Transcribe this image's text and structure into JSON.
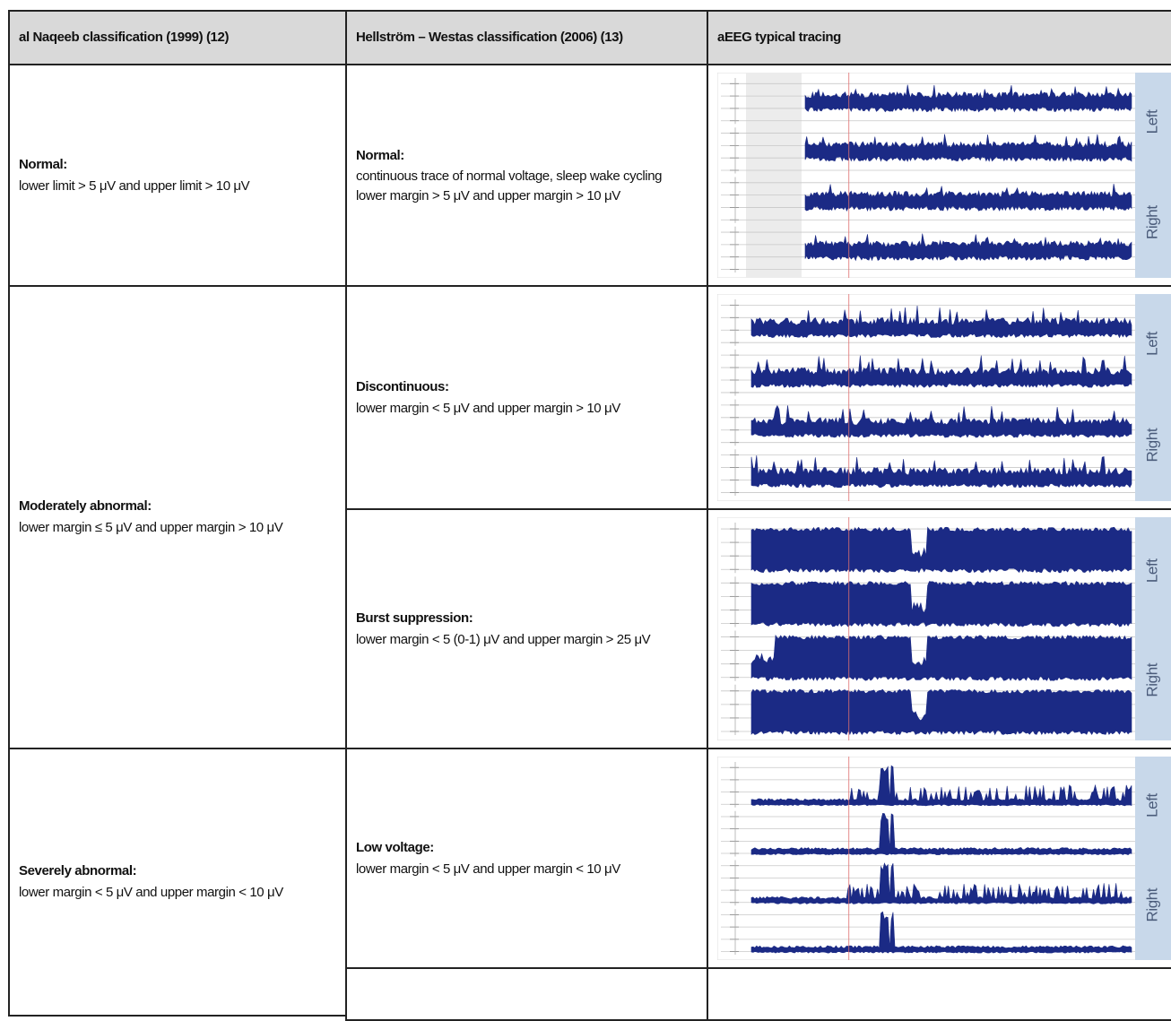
{
  "table": {
    "header": [
      "al Naqeeb classification (1999) (12)",
      "Hellström – Westas classification (2006) (13)",
      "aEEG typical tracing"
    ],
    "naqeeb": [
      {
        "title": "Normal:",
        "text": "lower limit > 5 μV and upper limit > 10 μV"
      },
      {
        "title": "Moderately abnormal:",
        "text": "lower margin ≤ 5 μV and upper margin > 10 μV"
      },
      {
        "title": "Severely abnormal:",
        "text": "lower margin < 5 μV and upper margin < 10 μV"
      }
    ],
    "hellstrom": [
      {
        "title": "Normal:",
        "lines": [
          "continuous trace of normal voltage, sleep wake cycling",
          "lower margin > 5 μV and upper margin > 10 μV"
        ]
      },
      {
        "title": "Discontinuous:",
        "lines": [
          "lower margin < 5 μV and upper margin > 10 μV"
        ]
      },
      {
        "title": "Burst suppression:",
        "lines": [
          "lower margin < 5 (0-1) μV and upper margin > 25 μV"
        ]
      },
      {
        "title": "Low voltage:",
        "lines": [
          "lower margin < 5 μV and upper margin < 10 μV"
        ]
      }
    ],
    "tracings": [
      [
        "Left",
        "Right"
      ],
      [
        "Left",
        "Right"
      ],
      [
        "Left",
        "Right"
      ],
      [
        "Left",
        "Right"
      ]
    ]
  }
}
